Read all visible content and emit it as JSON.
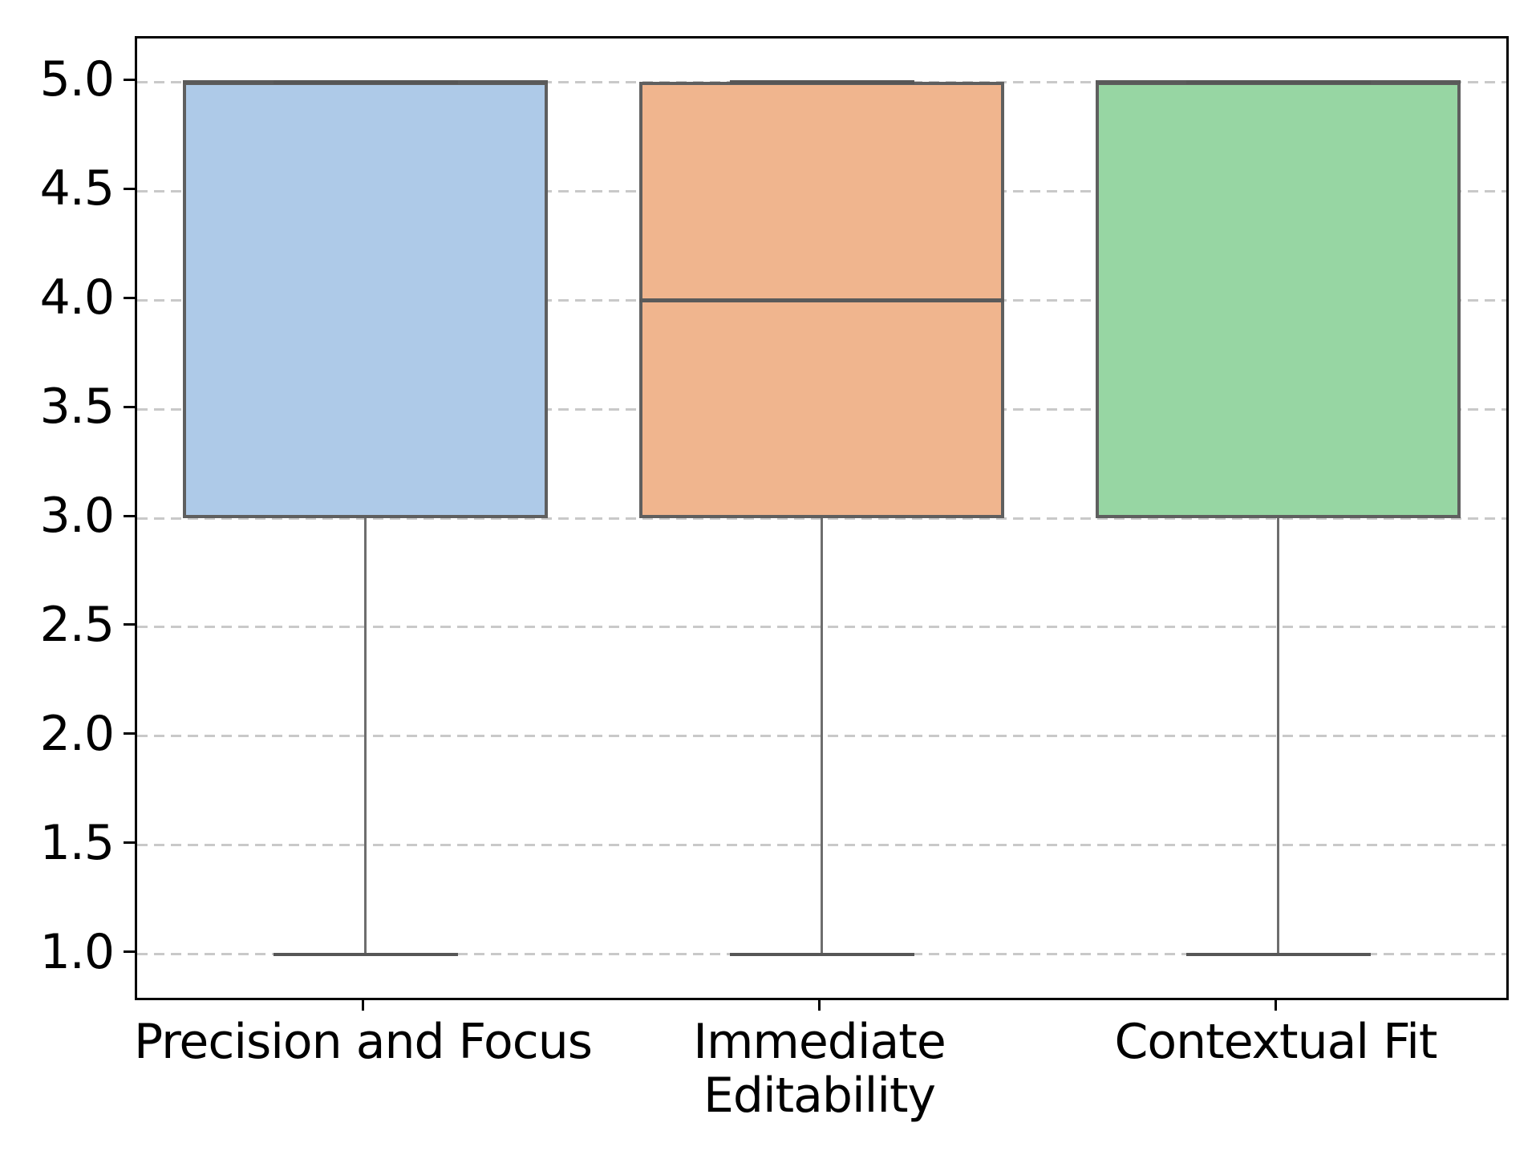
{
  "figure": {
    "background": "#ffffff"
  },
  "chart_data": {
    "type": "box",
    "title": "",
    "xlabel": "",
    "ylabel": "",
    "categories": [
      "Precision and Focus",
      "Immediate\nEditability",
      "Contextual Fit"
    ],
    "boxes": [
      {
        "label": "Precision and Focus",
        "whisker_low": 1.0,
        "q1": 3.0,
        "median": 5.0,
        "q3": 5.0,
        "whisker_high": 5.0,
        "fill": "#aecae8"
      },
      {
        "label": "Immediate Editability",
        "whisker_low": 1.0,
        "q1": 3.0,
        "median": 4.0,
        "q3": 5.0,
        "whisker_high": 5.0,
        "fill": "#f0b58e"
      },
      {
        "label": "Contextual Fit",
        "whisker_low": 1.0,
        "q1": 3.0,
        "median": 5.0,
        "q3": 5.0,
        "whisker_high": 5.0,
        "fill": "#97d6a3"
      }
    ],
    "yticks": [
      {
        "value": 5.0,
        "label": "5.0"
      },
      {
        "value": 4.5,
        "label": "4.5"
      },
      {
        "value": 4.0,
        "label": "4.0"
      },
      {
        "value": 3.5,
        "label": "3.5"
      },
      {
        "value": 3.0,
        "label": "3.0"
      },
      {
        "value": 2.5,
        "label": "2.5"
      },
      {
        "value": 2.0,
        "label": "2.0"
      },
      {
        "value": 1.5,
        "label": "1.5"
      },
      {
        "value": 1.0,
        "label": "1.0"
      }
    ],
    "ylim": [
      0.8,
      5.2
    ],
    "grid": {
      "axis": "y",
      "style": "dashed",
      "color": "#c9c9c9"
    },
    "legend": null,
    "colors": {
      "box_edge": "#5f5f5f",
      "median": "#5a5a5a",
      "whisker": "#6e6e6e",
      "cap": "#565656",
      "spine": "#000000",
      "text": "#000000"
    }
  }
}
